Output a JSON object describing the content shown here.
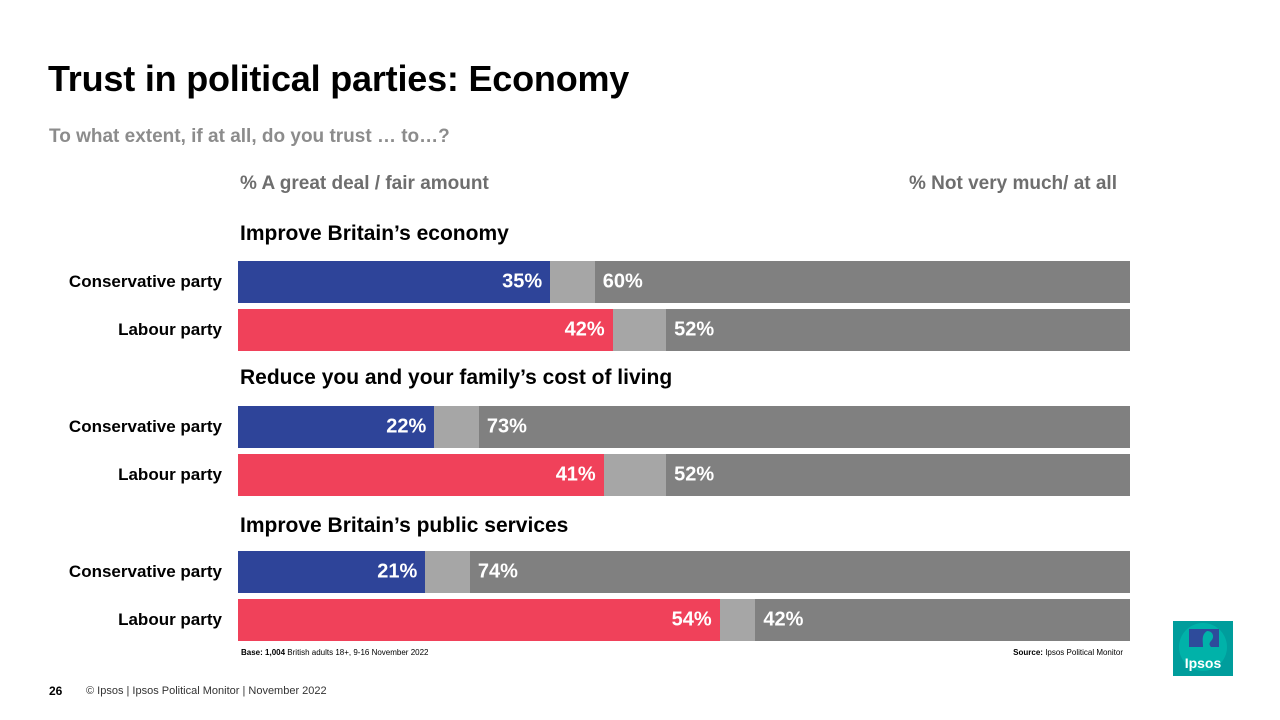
{
  "title": "Trust in political parties: Economy",
  "subtitle": "To what extent, if at all, do you trust … to…?",
  "columns": {
    "left_header": "% A great deal / fair amount",
    "right_header": "% Not very much/ at all"
  },
  "colors": {
    "conservative": "#2e4499",
    "labour": "#f0415a",
    "dont_know": "#a6a6a6",
    "not_trust": "#808080"
  },
  "chart_data": {
    "type": "bar",
    "orientation": "horizontal",
    "stacked": true,
    "xlim": [
      0,
      100
    ],
    "groups": [
      {
        "title": "Improve Britain’s economy",
        "rows": [
          {
            "label": "Conservative party",
            "party": "conservative",
            "trust": 35,
            "trust_label": "35%",
            "not_trust": 60,
            "not_trust_label": "60%"
          },
          {
            "label": "Labour party",
            "party": "labour",
            "trust": 42,
            "trust_label": "42%",
            "not_trust": 52,
            "not_trust_label": "52%"
          }
        ]
      },
      {
        "title": "Reduce you and your family’s cost of living",
        "rows": [
          {
            "label": "Conservative party",
            "party": "conservative",
            "trust": 22,
            "trust_label": "22%",
            "not_trust": 73,
            "not_trust_label": "73%"
          },
          {
            "label": "Labour party",
            "party": "labour",
            "trust": 41,
            "trust_label": "41%",
            "not_trust": 52,
            "not_trust_label": "52%"
          }
        ]
      },
      {
        "title": "Improve Britain’s public services",
        "rows": [
          {
            "label": "Conservative party",
            "party": "conservative",
            "trust": 21,
            "trust_label": "21%",
            "not_trust": 74,
            "not_trust_label": "74%"
          },
          {
            "label": "Labour party",
            "party": "labour",
            "trust": 54,
            "trust_label": "54%",
            "not_trust": 42,
            "not_trust_label": "42%"
          }
        ]
      }
    ]
  },
  "footer": {
    "base_bold": "Base:",
    "base_n": "1,004",
    "base_text": "British adults 18+, 9-16 November 2022",
    "source_bold": "Source:",
    "source_text": "Ipsos  Political Monitor",
    "page_number": "26",
    "copyright": "© Ipsos | Ipsos Political Monitor | November 2022"
  },
  "logo": {
    "text": "Ipsos"
  }
}
